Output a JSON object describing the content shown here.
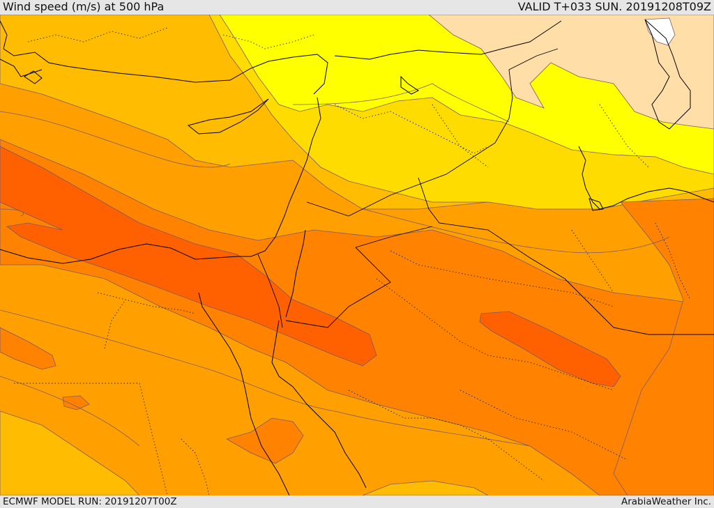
{
  "header": {
    "title": "Wind speed (m/s) at 500 hPa",
    "valid_time": "VALID T+033 SUN. 20191208T09Z"
  },
  "footer": {
    "model_run": "ECMWF MODEL RUN: 20191207T00Z",
    "credit": "ArabiaWeather Inc."
  },
  "map": {
    "field": "wind speed at 500 hPa",
    "colors": {
      "calm_white": "#ffffff",
      "band_peach": "#ffdea8",
      "band_yellow": "#ffff00",
      "band_gold": "#ffdc00",
      "band_amber": "#ffbc00",
      "band_orange_light": "#ffa000",
      "band_orange": "#ff8200",
      "band_orange_dark": "#ff6000",
      "contour_line": "#7a5a6a",
      "coastline": "#000000",
      "border_dotted": "#222222"
    }
  }
}
